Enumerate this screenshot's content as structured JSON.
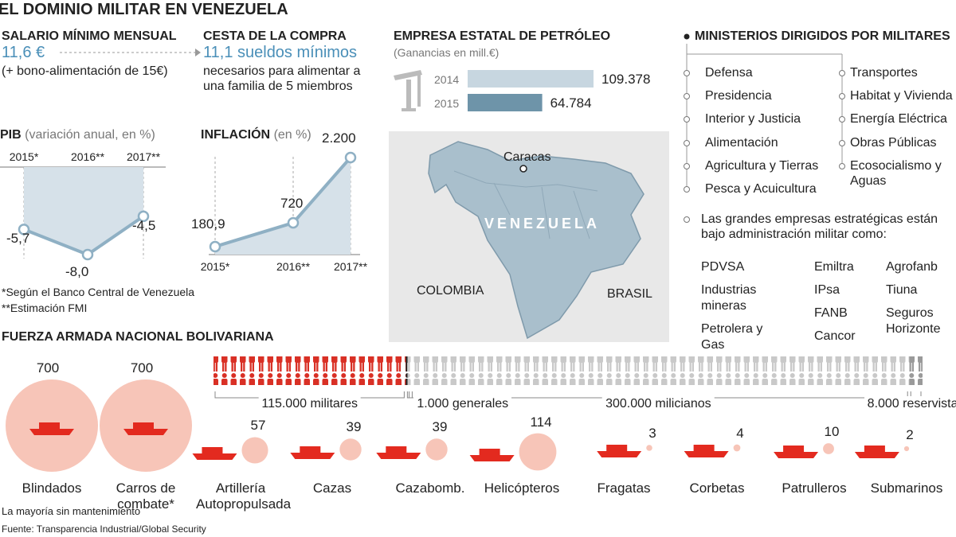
{
  "header": {
    "title": "EL DOMINIO MILITAR EN VENEZUELA"
  },
  "salario": {
    "title": "SALARIO MÍNIMO MENSUAL",
    "value": "11,6 €",
    "note": "(+ bono-alimentación de 15€)"
  },
  "cesta": {
    "title": "CESTA DE LA COMPRA",
    "value": "11,1 sueldos mínimos",
    "note": "necesarios para alimentar a una familia de 5 miembros"
  },
  "chart_data": [
    {
      "type": "line",
      "title": "PIB",
      "subtitle": "(variación anual, en %)",
      "categories": [
        "2015*",
        "2016**",
        "2017**"
      ],
      "values": [
        -5.7,
        -8.0,
        -4.5
      ],
      "value_labels": [
        "-5,7",
        "-8,0",
        "-4,5"
      ],
      "color": "#8fb0c4"
    },
    {
      "type": "line",
      "title": "INFLACIÓN",
      "subtitle": "(en %)",
      "categories": [
        "2015*",
        "2016**",
        "2017**"
      ],
      "values": [
        180.9,
        720,
        2200
      ],
      "value_labels": [
        "180,9",
        "720",
        "2.200"
      ],
      "color": "#8fb0c4"
    },
    {
      "type": "bar",
      "title": "EMPRESA ESTATAL DE PETRÓLEO",
      "subtitle": "(Ganancias en mill.€)",
      "categories": [
        "2014",
        "2015"
      ],
      "values": [
        109378,
        64784
      ],
      "value_labels": [
        "109.378",
        "64.784"
      ],
      "colors": [
        "#c7d6e0",
        "#6e94a9"
      ]
    },
    {
      "type": "pictogram",
      "title": "FUERZA ARMADA NACIONAL BOLIVARIANA",
      "categories": [
        "militares",
        "generales",
        "milicianos",
        "reservistas"
      ],
      "values": [
        115000,
        1000,
        300000,
        8000
      ],
      "value_labels": [
        "115.000",
        "1.000",
        "300.000",
        "8.000"
      ],
      "colors": [
        "#d93025",
        "#1e1e1e",
        "#c9c9c9",
        "#9a9a9a"
      ]
    },
    {
      "type": "bubble",
      "categories": [
        "Blindados",
        "Carros de combate*",
        "Artillería Autopropulsada",
        "Cazas",
        "Cazabomb.",
        "Helicópteros",
        "Fragatas",
        "Corbetas",
        "Patrulleros",
        "Submarinos"
      ],
      "values": [
        700,
        700,
        57,
        39,
        39,
        114,
        3,
        4,
        10,
        2
      ],
      "color": "#f7c5b8"
    }
  ],
  "notes": [
    "*Según el Banco Central de Venezuela",
    "**Estimación FMI"
  ],
  "map": {
    "city": "Caracas",
    "country": "VENEZUELA",
    "neighbors": [
      "COLOMBIA",
      "BRASIL"
    ]
  },
  "ministerios": {
    "title": "MINISTERIOS DIRIGIDOS POR MILITARES",
    "left": [
      "Defensa",
      "Presidencia",
      "Interior y Justicia",
      "Alimentación",
      "Agricultura y Tierras",
      "Pesca y Acuicultura"
    ],
    "right": [
      "Transportes",
      "Habitat y Vivienda",
      "Energía Eléctrica",
      "Obras Públicas",
      "Ecosocialismo y Aguas"
    ]
  },
  "empresas": {
    "intro": "Las grandes empresas estratégicas están bajo administración militar como:",
    "columns": [
      [
        "PDVSA",
        "Industrias mineras",
        "Petrolera y Gas"
      ],
      [
        "Emiltra",
        "IPsa",
        "FANB",
        "Cancor"
      ],
      [
        "Agrofanb",
        "Tiuna",
        "Seguros Horizonte"
      ]
    ]
  },
  "footnotes": [
    "La mayoría sin mantenimiento",
    "Fuente: Transparencia Industrial/Global Security"
  ]
}
